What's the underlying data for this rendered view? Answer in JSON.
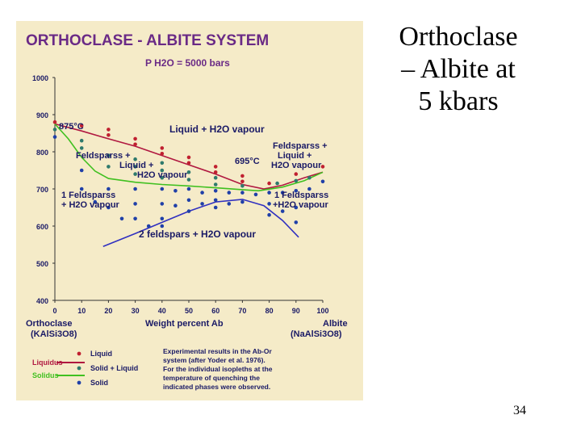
{
  "slide": {
    "title_lines": [
      "Orthoclase",
      "– Albite at",
      "5 kbars"
    ],
    "page_number": "34"
  },
  "figure": {
    "title": "ORTHOCLASE - ALBITE SYSTEM",
    "pressure": "P H2O = 5000 bars",
    "annotations": {
      "t875": "875°C",
      "t695": "695°C",
      "liquid_vapour": "Liquid + H2O vapour",
      "fsp_liq_left_1": "Feldsparss +",
      "fsp_liq_left_2": "Liquid +",
      "fsp_liq_left_3": "H2O vapour",
      "fsp_liq_right_1": "Feldsparss +",
      "fsp_liq_right_2": "Liquid +",
      "fsp_liq_right_3": "H2O vapour",
      "one_fsp_left_1": "1 Feldsparss",
      "one_fsp_left_2": "+ H2O vapour",
      "one_fsp_right_1": "1 Feldsparss",
      "one_fsp_right_2": "+H2O vapour",
      "two_fsp": "2 feldspars + H2O vapour"
    },
    "x_axis": {
      "label": "Weight percent Ab",
      "left_end": "Orthoclase",
      "left_formula": "(KAlSi3O8)",
      "right_end": "Albite",
      "right_formula": "(NaAlSi3O8)"
    },
    "legend": {
      "liquidus": "Liquidus",
      "solidus": "Solidus",
      "liquid": "Liquid",
      "solid_liquid": "Solid + Liquid",
      "solid": "Solid",
      "note_lines": [
        "Experimental results in the Ab-Or",
        "system (after Yoder et al. 1976).",
        "For the individual isopleths at the",
        "temperature of quenching the",
        "indicated phases were observed."
      ]
    },
    "colors": {
      "background": "#f5ebc8",
      "title": "#6a2a86",
      "text": "#1a1a66",
      "liquidus": "#b01840",
      "solidus": "#40c020",
      "solvus": "#3030c0",
      "liquid_dot": "#c02030",
      "mixed_dot": "#2e7a6c",
      "solid_dot": "#2040a8"
    }
  },
  "chart_data": {
    "type": "scatter",
    "xlabel": "Weight percent Ab",
    "ylabel": "",
    "xlim": [
      0,
      100
    ],
    "ylim": [
      400,
      1000
    ],
    "x_ticks": [
      0,
      10,
      20,
      30,
      40,
      50,
      60,
      70,
      80,
      90,
      100
    ],
    "y_ticks": [
      400,
      500,
      600,
      700,
      800,
      900,
      1000
    ],
    "y_tick_labels": [
      "400",
      "500",
      "600",
      "700",
      "800",
      "900",
      "1000"
    ],
    "curves": [
      {
        "name": "Liquidus",
        "points": [
          [
            0,
            875
          ],
          [
            10,
            856
          ],
          [
            20,
            835
          ],
          [
            30,
            815
          ],
          [
            40,
            790
          ],
          [
            50,
            765
          ],
          [
            60,
            740
          ],
          [
            70,
            712
          ],
          [
            78,
            700
          ],
          [
            85,
            710
          ],
          [
            93,
            730
          ],
          [
            100,
            745
          ]
        ]
      },
      {
        "name": "Solidus",
        "points": [
          [
            0,
            875
          ],
          [
            5,
            835
          ],
          [
            10,
            785
          ],
          [
            15,
            748
          ],
          [
            20,
            728
          ],
          [
            30,
            718
          ],
          [
            40,
            712
          ],
          [
            50,
            708
          ],
          [
            60,
            703
          ],
          [
            70,
            698
          ],
          [
            76,
            695
          ],
          [
            85,
            705
          ],
          [
            93,
            722
          ],
          [
            100,
            745
          ]
        ]
      },
      {
        "name": "Solvus",
        "points": [
          [
            18,
            545
          ],
          [
            30,
            580
          ],
          [
            40,
            610
          ],
          [
            50,
            640
          ],
          [
            60,
            665
          ],
          [
            70,
            672
          ],
          [
            78,
            655
          ],
          [
            85,
            615
          ],
          [
            91,
            570
          ]
        ]
      }
    ],
    "points": [
      {
        "name": "Liquid",
        "xy": [
          [
            0,
            880
          ],
          [
            10,
            870
          ],
          [
            20,
            860
          ],
          [
            20,
            845
          ],
          [
            30,
            835
          ],
          [
            30,
            820
          ],
          [
            40,
            810
          ],
          [
            40,
            795
          ],
          [
            50,
            785
          ],
          [
            50,
            770
          ],
          [
            60,
            760
          ],
          [
            60,
            745
          ],
          [
            70,
            735
          ],
          [
            70,
            720
          ],
          [
            80,
            715
          ],
          [
            90,
            740
          ],
          [
            100,
            760
          ]
        ]
      },
      {
        "name": "Solid + Liquid",
        "xy": [
          [
            0,
            860
          ],
          [
            10,
            830
          ],
          [
            10,
            810
          ],
          [
            20,
            790
          ],
          [
            20,
            760
          ],
          [
            30,
            780
          ],
          [
            30,
            760
          ],
          [
            30,
            740
          ],
          [
            40,
            770
          ],
          [
            40,
            750
          ],
          [
            40,
            730
          ],
          [
            50,
            745
          ],
          [
            50,
            725
          ],
          [
            60,
            730
          ],
          [
            60,
            712
          ],
          [
            70,
            708
          ],
          [
            83,
            715
          ],
          [
            90,
            722
          ],
          [
            95,
            730
          ]
        ]
      },
      {
        "name": "Solid",
        "xy": [
          [
            0,
            840
          ],
          [
            10,
            750
          ],
          [
            10,
            700
          ],
          [
            15,
            665
          ],
          [
            20,
            700
          ],
          [
            20,
            650
          ],
          [
            25,
            620
          ],
          [
            30,
            700
          ],
          [
            30,
            660
          ],
          [
            30,
            620
          ],
          [
            35,
            600
          ],
          [
            40,
            700
          ],
          [
            40,
            660
          ],
          [
            40,
            620
          ],
          [
            40,
            600
          ],
          [
            45,
            695
          ],
          [
            45,
            655
          ],
          [
            50,
            700
          ],
          [
            50,
            670
          ],
          [
            50,
            640
          ],
          [
            55,
            690
          ],
          [
            55,
            660
          ],
          [
            60,
            695
          ],
          [
            60,
            670
          ],
          [
            60,
            650
          ],
          [
            65,
            690
          ],
          [
            65,
            660
          ],
          [
            70,
            690
          ],
          [
            70,
            665
          ],
          [
            75,
            685
          ],
          [
            80,
            690
          ],
          [
            80,
            660
          ],
          [
            80,
            630
          ],
          [
            85,
            690
          ],
          [
            85,
            640
          ],
          [
            90,
            695
          ],
          [
            90,
            650
          ],
          [
            90,
            610
          ],
          [
            95,
            700
          ],
          [
            100,
            720
          ]
        ]
      }
    ]
  }
}
